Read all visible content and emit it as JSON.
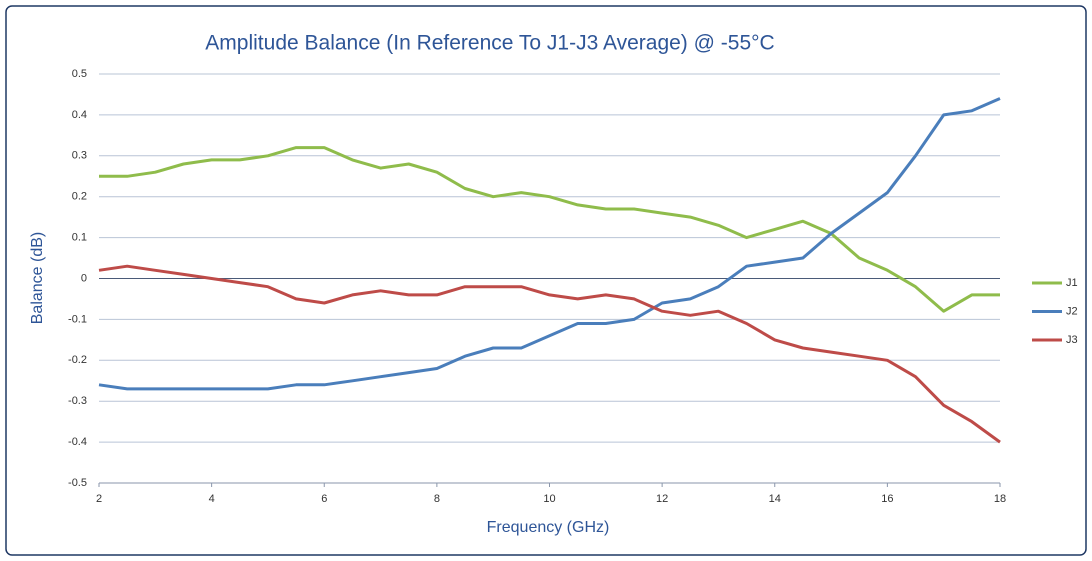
{
  "chart_data": {
    "type": "line",
    "title": "Amplitude Balance (In Reference To J1-J3 Average) @ -55°C",
    "x_label": "Frequency (GHz)",
    "y_label": "Balance (dB)",
    "x": [
      2,
      2.5,
      3,
      3.5,
      4,
      4.5,
      5,
      5.5,
      6,
      6.5,
      7,
      7.5,
      8,
      8.5,
      9,
      9.5,
      10,
      10.5,
      11,
      11.5,
      12,
      12.5,
      13,
      13.5,
      14,
      14.5,
      15,
      15.5,
      16,
      16.5,
      17,
      17.5,
      18
    ],
    "series": [
      {
        "name": "J1",
        "color": "#8fbc4b",
        "values": [
          0.25,
          0.25,
          0.26,
          0.28,
          0.29,
          0.29,
          0.3,
          0.32,
          0.32,
          0.29,
          0.27,
          0.28,
          0.26,
          0.22,
          0.2,
          0.21,
          0.2,
          0.18,
          0.17,
          0.17,
          0.16,
          0.15,
          0.13,
          0.1,
          0.12,
          0.14,
          0.11,
          0.05,
          0.02,
          -0.02,
          -0.08,
          -0.04,
          -0.04
        ]
      },
      {
        "name": "J2",
        "color": "#4a7ebb",
        "values": [
          -0.26,
          -0.27,
          -0.27,
          -0.27,
          -0.27,
          -0.27,
          -0.27,
          -0.26,
          -0.26,
          -0.25,
          -0.24,
          -0.23,
          -0.22,
          -0.19,
          -0.17,
          -0.17,
          -0.14,
          -0.11,
          -0.11,
          -0.1,
          -0.06,
          -0.05,
          -0.02,
          0.03,
          0.04,
          0.05,
          0.11,
          0.16,
          0.21,
          0.3,
          0.4,
          0.41,
          0.44
        ]
      },
      {
        "name": "J3",
        "color": "#be4b48",
        "values": [
          0.02,
          0.03,
          0.02,
          0.01,
          0.0,
          -0.01,
          -0.02,
          -0.05,
          -0.06,
          -0.04,
          -0.03,
          -0.04,
          -0.04,
          -0.02,
          -0.02,
          -0.02,
          -0.04,
          -0.05,
          -0.04,
          -0.05,
          -0.08,
          -0.09,
          -0.08,
          -0.11,
          -0.15,
          -0.17,
          -0.18,
          -0.19,
          -0.2,
          -0.24,
          -0.31,
          -0.35,
          -0.4
        ]
      }
    ],
    "xlim": [
      2,
      18
    ],
    "xticks": [
      2,
      4,
      6,
      8,
      10,
      12,
      14,
      16,
      18
    ],
    "ylim": [
      -0.5,
      0.5
    ],
    "yticks": [
      -0.5,
      -0.4,
      -0.3,
      -0.2,
      -0.1,
      0,
      0.1,
      0.2,
      0.3,
      0.4,
      0.5
    ],
    "grid": true,
    "legend": "right"
  }
}
